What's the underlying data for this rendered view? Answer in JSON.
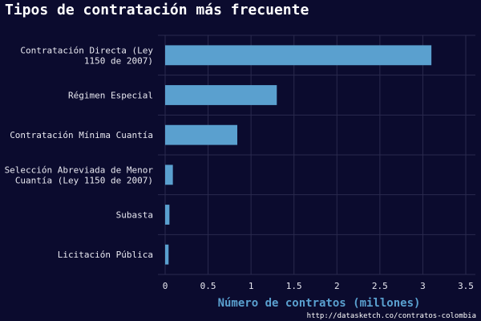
{
  "chart_data": {
    "type": "bar",
    "orientation": "horizontal",
    "title": "Tipos de contratación más frecuente",
    "categories": [
      [
        "Contratación Directa (Ley",
        "1150 de 2007)"
      ],
      [
        "Régimen Especial"
      ],
      [
        "Contratación Mínima Cuantía"
      ],
      [
        "Selección Abreviada de Menor",
        "Cuantía (Ley 1150 de 2007)"
      ],
      [
        "Subasta"
      ],
      [
        "Licitación Pública"
      ]
    ],
    "values": [
      3.1,
      1.3,
      0.84,
      0.09,
      0.05,
      0.04
    ],
    "xlabel": "Número de contratos (millones)",
    "ylabel": "",
    "xlim": [
      0,
      3.5
    ],
    "xticks": [
      "0",
      "0.5",
      "1",
      "1.5",
      "2",
      "2.5",
      "3",
      "3.5"
    ],
    "grid": true,
    "bar_color": "#5aa0cf",
    "grid_color": "#2a2a4e"
  },
  "caption": "http://datasketch.co/contratos-colombia"
}
